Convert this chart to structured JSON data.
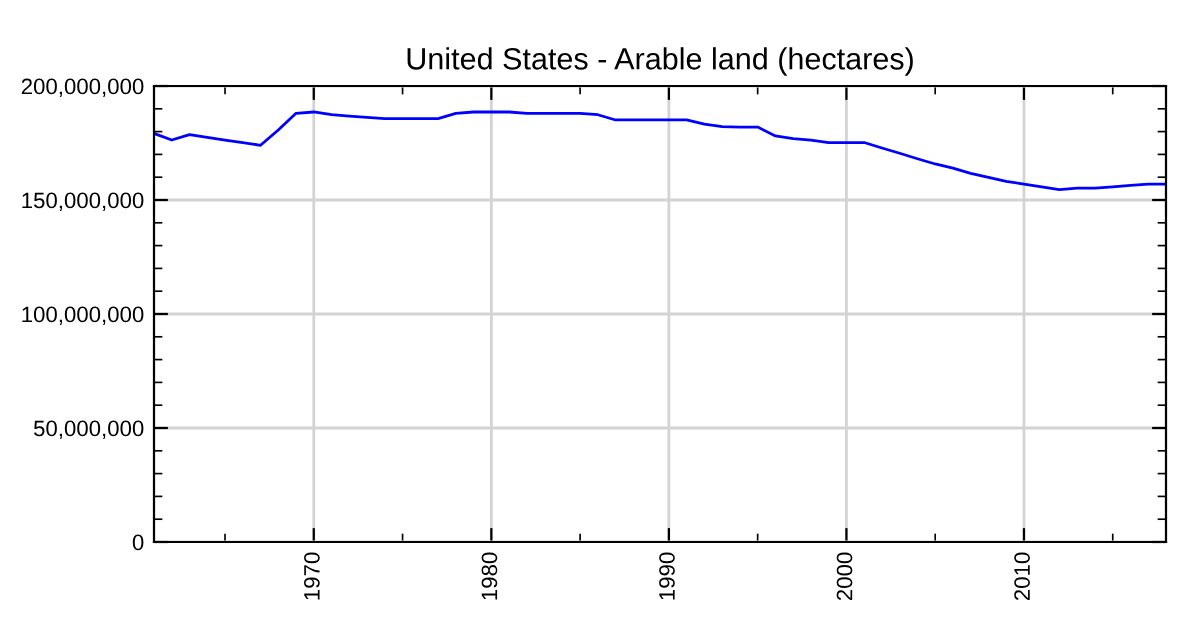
{
  "chart_data": {
    "type": "line",
    "title": "United States - Arable land (hectares)",
    "x": [
      1961,
      1962,
      1963,
      1964,
      1965,
      1966,
      1967,
      1968,
      1969,
      1970,
      1971,
      1972,
      1973,
      1974,
      1975,
      1976,
      1977,
      1978,
      1979,
      1980,
      1981,
      1982,
      1983,
      1984,
      1985,
      1986,
      1987,
      1988,
      1989,
      1990,
      1991,
      1992,
      1993,
      1994,
      1995,
      1996,
      1997,
      1998,
      1999,
      2000,
      2001,
      2002,
      2003,
      2004,
      2005,
      2006,
      2007,
      2008,
      2009,
      2010,
      2011,
      2012,
      2013,
      2014,
      2015,
      2016,
      2017,
      2018
    ],
    "series": [
      {
        "color": "#0000ff",
        "values": [
          179200000,
          176300000,
          178700000,
          177500000,
          176300000,
          175200000,
          174000000,
          180700000,
          188000000,
          188600000,
          187400000,
          186800000,
          186200000,
          185700000,
          185700000,
          185700000,
          185700000,
          188000000,
          188600000,
          188600000,
          188600000,
          188000000,
          188000000,
          188000000,
          188000000,
          187400000,
          185100000,
          185100000,
          185100000,
          185100000,
          185100000,
          183300000,
          182200000,
          182000000,
          182000000,
          178100000,
          176900000,
          176300000,
          175200000,
          175200000,
          175200000,
          172800000,
          170500000,
          168100000,
          165800000,
          164000000,
          161700000,
          159900000,
          158200000,
          157000000,
          155800000,
          154600000,
          155200000,
          155200000,
          155800000,
          156400000,
          157000000,
          157000000
        ]
      }
    ],
    "xlim": [
      1961,
      2018
    ],
    "xticks": [
      1970,
      1980,
      1990,
      2000,
      2010
    ],
    "ylim": [
      0,
      200000000
    ],
    "yticks": [
      0,
      {
        "value": 50000000,
        "label": "50,000,000"
      },
      {
        "value": 100000000,
        "label": "100,000,000"
      },
      {
        "value": 150000000,
        "label": "150,000,000"
      },
      {
        "value": 200000000,
        "label": "200,000,000"
      }
    ],
    "grid": true,
    "legend": false,
    "marker": "none",
    "line_style": "solid"
  }
}
